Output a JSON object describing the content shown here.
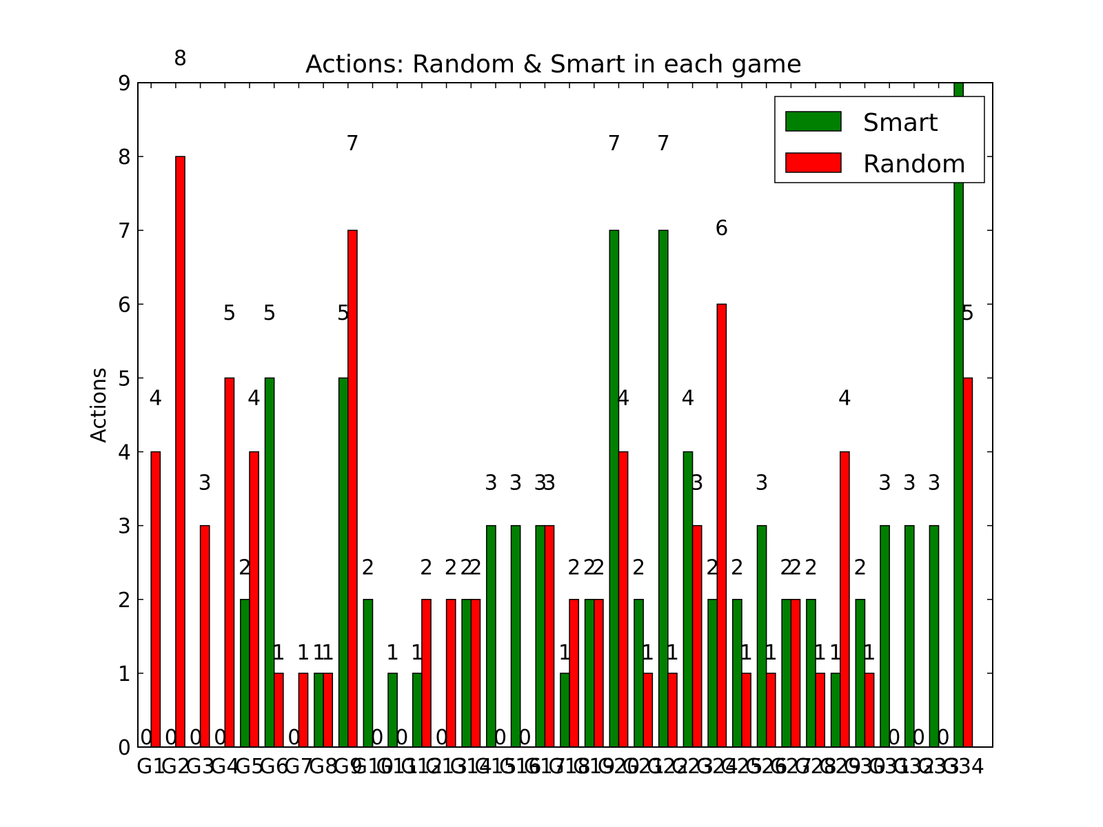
{
  "chart_data": {
    "type": "bar",
    "title": "Actions: Random & Smart in each game",
    "xlabel": "",
    "ylabel": "Actions",
    "ylim": [
      0,
      9
    ],
    "yticks": [
      "0",
      "1",
      "2",
      "3",
      "4",
      "5",
      "6",
      "7",
      "8",
      "9"
    ],
    "categories": [
      "G1",
      "G2",
      "G3",
      "G4",
      "G5",
      "G6",
      "G7",
      "G8",
      "G9",
      "G10",
      "G11",
      "G12",
      "G13",
      "G14",
      "G15",
      "G16",
      "G17",
      "G18",
      "G19",
      "G20",
      "G21",
      "G22",
      "G23",
      "G24",
      "G25",
      "G26",
      "G27",
      "G28",
      "G29",
      "G30",
      "G31",
      "G32",
      "G33",
      "G34"
    ],
    "series": [
      {
        "name": "Smart",
        "color": "#008000",
        "values": [
          0,
          0,
          0,
          0,
          2,
          5,
          0,
          1,
          5,
          2,
          1,
          1,
          0,
          2,
          3,
          3,
          3,
          1,
          2,
          7,
          2,
          7,
          4,
          2,
          2,
          3,
          2,
          2,
          1,
          2,
          3,
          3,
          3,
          9
        ]
      },
      {
        "name": "Random",
        "color": "#ff0000",
        "values": [
          4,
          8,
          3,
          5,
          4,
          1,
          1,
          1,
          7,
          0,
          0,
          2,
          2,
          2,
          0,
          0,
          3,
          2,
          2,
          4,
          1,
          1,
          3,
          6,
          1,
          1,
          2,
          1,
          4,
          1,
          0,
          0,
          0,
          5
        ]
      }
    ],
    "grid": false,
    "legend_position": "top-right"
  }
}
